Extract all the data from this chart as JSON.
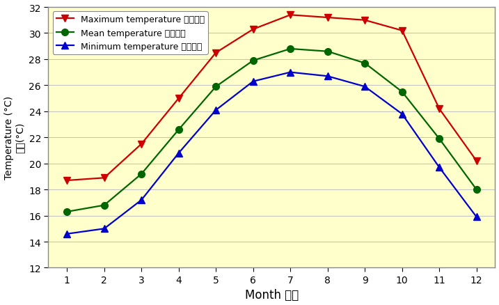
{
  "months": [
    1,
    2,
    3,
    4,
    5,
    6,
    7,
    8,
    9,
    10,
    11,
    12
  ],
  "max_temp": [
    18.7,
    18.9,
    21.5,
    25.0,
    28.5,
    30.3,
    31.4,
    31.2,
    31.0,
    30.2,
    24.2,
    20.2
  ],
  "mean_temp": [
    16.3,
    16.8,
    19.2,
    22.6,
    25.9,
    27.9,
    28.8,
    28.6,
    27.7,
    25.5,
    21.9,
    18.0
  ],
  "min_temp": [
    14.6,
    15.0,
    17.2,
    20.8,
    24.1,
    26.3,
    27.0,
    26.7,
    25.9,
    23.8,
    19.7,
    15.9
  ],
  "max_color": "#cc0000",
  "mean_color": "#006600",
  "min_color": "#0000cc",
  "bg_color": "#ffffcc",
  "border_color": "#888888",
  "ylabel_en": "Temperature (°C)",
  "ylabel_zh": "氣溫(°C)",
  "xlabel": "Month 月份",
  "ylim": [
    12,
    32
  ],
  "yticks": [
    12,
    14,
    16,
    18,
    20,
    22,
    24,
    26,
    28,
    30,
    32
  ],
  "legend_max": "Maximum temperature 最高氣溫",
  "legend_mean": "Mean temperature 平均氣溫",
  "legend_min": "Minimum temperature 最低氣溫"
}
